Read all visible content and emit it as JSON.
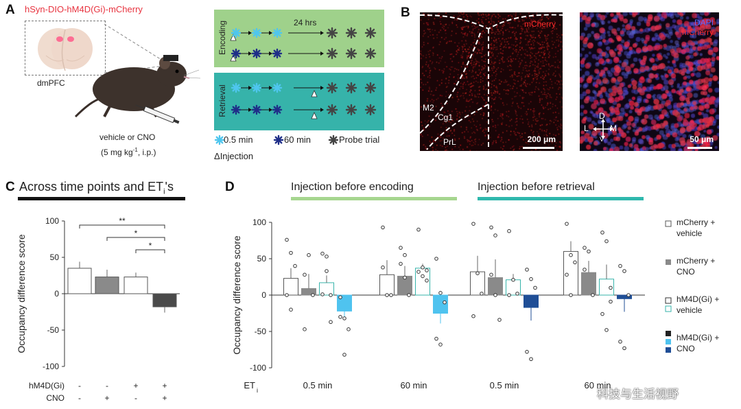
{
  "panelA": {
    "label": "A",
    "construct": "hSyn-DIO-hM4D(Gi)-mCherry",
    "region": "dmPFC",
    "drug_line1": "vehicle or CNO",
    "drug_line2_pre": "(5 mg kg",
    "drug_line2_sup": "-1",
    "drug_line2_post": ", i.p.)",
    "encoding_label": "Encoding",
    "retrieval_label": "Retrieval",
    "delay_label": "24 hrs",
    "legend": {
      "half_min": "0.5 min",
      "sixty_min": "60 min",
      "probe": "Probe trial",
      "injection": "Injection",
      "injection_symbol": "Δ"
    },
    "colors": {
      "encoding_bg": "#9fd18b",
      "retrieval_bg": "#36b3aa",
      "light_blue": "#4fc6ee",
      "dark_blue": "#1f2e88",
      "probe": "#444444"
    }
  },
  "panelB": {
    "label": "B",
    "left": {
      "stain": "mCherry",
      "regions": [
        "M2",
        "Cg1",
        "PrL"
      ],
      "scale": "200 μm"
    },
    "right": {
      "stain1": "DAPI",
      "stain2": "mCherry",
      "axes": {
        "d": "D",
        "l": "L",
        "m": "M",
        "v": "V"
      },
      "scale": "50 μm"
    },
    "colors": {
      "mcherry": "#ff2a2a",
      "dapi": "#5a6bff"
    }
  },
  "chart_data": [
    {
      "id": "C",
      "type": "bar",
      "panel_label": "C",
      "title_pre": "Across time points and ET",
      "title_sub": "i",
      "title_post": "'s",
      "ylabel": "Occupancy difference score",
      "ylim": [
        -100,
        100
      ],
      "yticks": [
        "100",
        "50",
        "0",
        "-50",
        "-100"
      ],
      "categories": [
        "mCherry + vehicle",
        "mCherry + CNO",
        "hM4D(Gi) + vehicle",
        "hM4D(Gi) + CNO"
      ],
      "values": [
        35,
        23,
        23,
        -18
      ],
      "errors": [
        9,
        10,
        6,
        8
      ],
      "condition_rows": [
        {
          "label": "hM4D(Gi)",
          "marks": [
            "-",
            "-",
            "+",
            "+"
          ]
        },
        {
          "label": "CNO",
          "marks": [
            "-",
            "+",
            "-",
            "+"
          ]
        }
      ],
      "significance": [
        {
          "from": 1,
          "to": 4,
          "label": "**"
        },
        {
          "from": 2,
          "to": 4,
          "label": "*"
        },
        {
          "from": 3,
          "to": 4,
          "label": "*"
        }
      ],
      "bar_colors": [
        "#ffffff",
        "#8a8a8a",
        "#ffffff",
        "#4a4a4a"
      ]
    },
    {
      "id": "D",
      "type": "bar",
      "panel_label": "D",
      "ylabel": "Occupancy difference score",
      "ylim": [
        -100,
        100
      ],
      "yticks": [
        "100",
        "50",
        "0",
        "-50",
        "-100"
      ],
      "xlabel_pre": "ET",
      "xlabel_sub": "i",
      "group_headers": [
        {
          "label": "Injection before encoding",
          "color": "#a6d68f"
        },
        {
          "label": "Injection before retrieval",
          "color": "#2fb8ad"
        }
      ],
      "groups": [
        "0.5 min",
        "60 min",
        "0.5 min",
        "60 min"
      ],
      "series": [
        {
          "name": "mCherry + vehicle",
          "values": [
            23,
            28,
            32,
            60
          ],
          "errors": [
            14,
            20,
            22,
            14
          ],
          "color": "#ffffff",
          "edge": "#555555"
        },
        {
          "name": "mCherry + CNO",
          "values": [
            9,
            26,
            24,
            31
          ],
          "errors": [
            20,
            14,
            25,
            16
          ],
          "color": "#8a8a8a",
          "edge": "#8a8a8a"
        },
        {
          "name": "hM4D(Gi) + vehicle",
          "values": [
            17,
            37,
            21,
            22
          ],
          "errors": [
            10,
            6,
            8,
            20
          ],
          "color": "#ffffff",
          "edge": "#36b3aa"
        },
        {
          "name": "hM4D(Gi) + CNO",
          "values": [
            -22,
            -25,
            -17,
            -5
          ],
          "errors": [
            8,
            14,
            18,
            18
          ],
          "color_encoding": "#4fc3ef",
          "color_retrieval": "#1f4e96"
        }
      ],
      "points": [
        [
          [
            76,
            58,
            40,
            0,
            -20
          ],
          [
            -47,
            55,
            0,
            28
          ],
          [
            57,
            53,
            0,
            1,
            33,
            -37
          ],
          [
            -3,
            -32,
            -47,
            -30,
            -82
          ]
        ],
        [
          [
            93,
            0,
            0,
            38
          ],
          [
            65,
            55,
            0,
            43,
            24
          ],
          [
            90,
            38,
            34,
            32,
            26,
            20
          ],
          [
            50,
            3,
            -10,
            -60,
            -68
          ]
        ],
        [
          [
            98,
            30,
            2,
            -29
          ],
          [
            93,
            82,
            -34,
            28,
            0
          ],
          [
            88,
            21,
            2,
            0
          ],
          [
            35,
            22,
            10,
            -78,
            -88
          ]
        ],
        [
          [
            98,
            55,
            45,
            28,
            0
          ],
          [
            65,
            60,
            0,
            35
          ],
          [
            86,
            74,
            10,
            -26,
            -48,
            -9
          ],
          [
            40,
            33,
            0,
            -64,
            -73
          ]
        ]
      ],
      "legend": [
        {
          "line1": "mCherry +",
          "line2": "vehicle"
        },
        {
          "line1": "mCherry +",
          "line2": "CNO"
        },
        {
          "line1": "hM4D(Gi) +",
          "line2": "vehicle"
        },
        {
          "line1": "hM4D(Gi) +",
          "line2": "CNO"
        }
      ]
    }
  ],
  "watermark": "科技与生活视野"
}
